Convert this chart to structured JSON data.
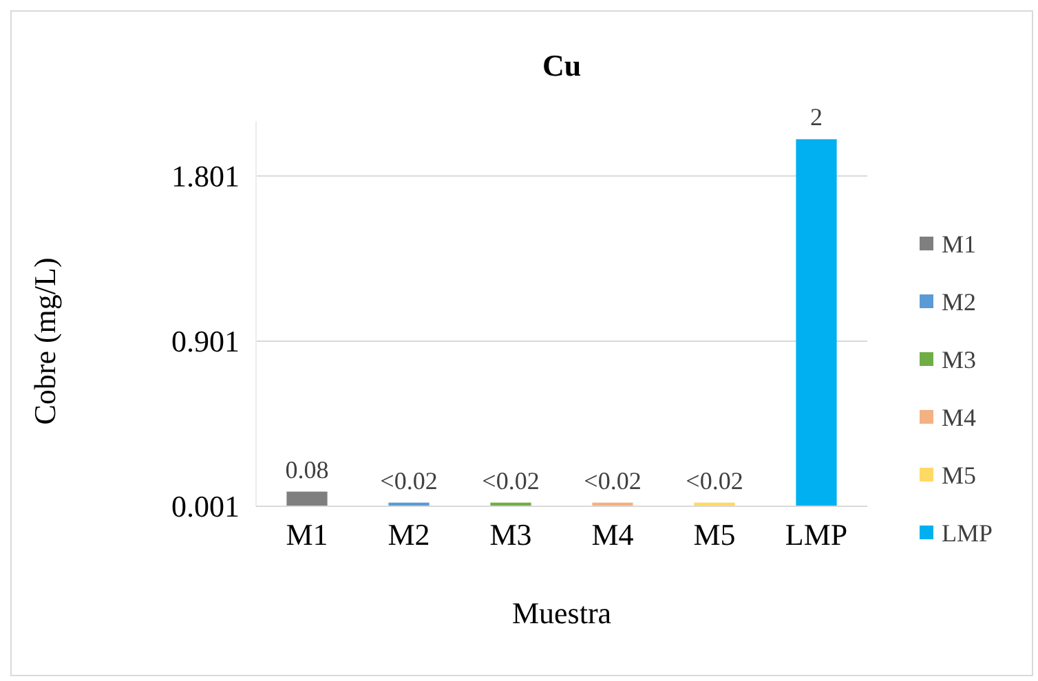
{
  "chart_data": {
    "type": "bar",
    "title": "Cu",
    "xlabel": "Muestra",
    "ylabel": "Cobre (mg/L)",
    "categories": [
      "M1",
      "M2",
      "M3",
      "M4",
      "M5",
      "LMP"
    ],
    "stacked": true,
    "series": [
      {
        "name": "M1",
        "color": "#7f7f7f",
        "values": [
          0.08,
          null,
          null,
          null,
          null,
          null
        ],
        "value_labels": [
          "0.08",
          null,
          null,
          null,
          null,
          null
        ]
      },
      {
        "name": "M2",
        "color": "#5b9bd5",
        "values": [
          null,
          0.02,
          null,
          null,
          null,
          null
        ],
        "value_labels": [
          null,
          "<0.02",
          null,
          null,
          null,
          null
        ]
      },
      {
        "name": "M3",
        "color": "#70ad47",
        "values": [
          null,
          null,
          0.02,
          null,
          null,
          null
        ],
        "value_labels": [
          null,
          null,
          "<0.02",
          null,
          null,
          null
        ]
      },
      {
        "name": "M4",
        "color": "#f4b183",
        "values": [
          null,
          null,
          null,
          0.02,
          null,
          null
        ],
        "value_labels": [
          null,
          null,
          null,
          "<0.02",
          null,
          null
        ]
      },
      {
        "name": "M5",
        "color": "#ffd966",
        "values": [
          null,
          null,
          null,
          null,
          0.02,
          null
        ],
        "value_labels": [
          null,
          null,
          null,
          null,
          "<0.02",
          null
        ]
      },
      {
        "name": "LMP",
        "color": "#00b0f0",
        "values": [
          null,
          null,
          null,
          null,
          null,
          2
        ],
        "value_labels": [
          null,
          null,
          null,
          null,
          null,
          "2"
        ]
      }
    ],
    "ylim": [
      0.001,
      2.1
    ],
    "yticks": [
      0.001,
      0.901,
      1.801
    ],
    "grid": "y",
    "legend": "right"
  }
}
